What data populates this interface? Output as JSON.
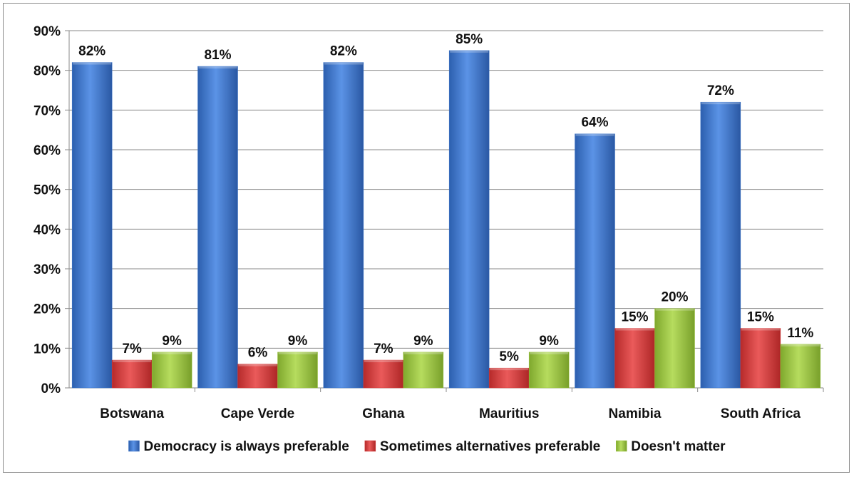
{
  "chart_data": {
    "type": "bar",
    "categories": [
      "Botswana",
      "Cape Verde",
      "Ghana",
      "Mauritius",
      "Namibia",
      "South Africa"
    ],
    "series": [
      {
        "name": "Democracy is always preferable",
        "values": [
          82,
          81,
          82,
          85,
          64,
          72
        ],
        "labels": [
          "82%",
          "81%",
          "82%",
          "85%",
          "64%",
          "72%"
        ],
        "color": "#3a74c9"
      },
      {
        "name": "Sometimes alternatives preferable",
        "values": [
          7,
          6,
          7,
          5,
          15,
          15
        ],
        "labels": [
          "7%",
          "6%",
          "7%",
          "5%",
          "15%",
          "15%"
        ],
        "color": "#d43b3b"
      },
      {
        "name": "Doesn't matter",
        "values": [
          9,
          9,
          9,
          9,
          20,
          11
        ],
        "labels": [
          "9%",
          "9%",
          "9%",
          "9%",
          "20%",
          "11%"
        ],
        "color": "#9bc43f"
      }
    ],
    "y_ticks": [
      "0%",
      "10%",
      "20%",
      "30%",
      "40%",
      "50%",
      "60%",
      "70%",
      "80%",
      "90%"
    ],
    "ylim": [
      0,
      90
    ],
    "grid": true,
    "legend_position": "bottom"
  }
}
